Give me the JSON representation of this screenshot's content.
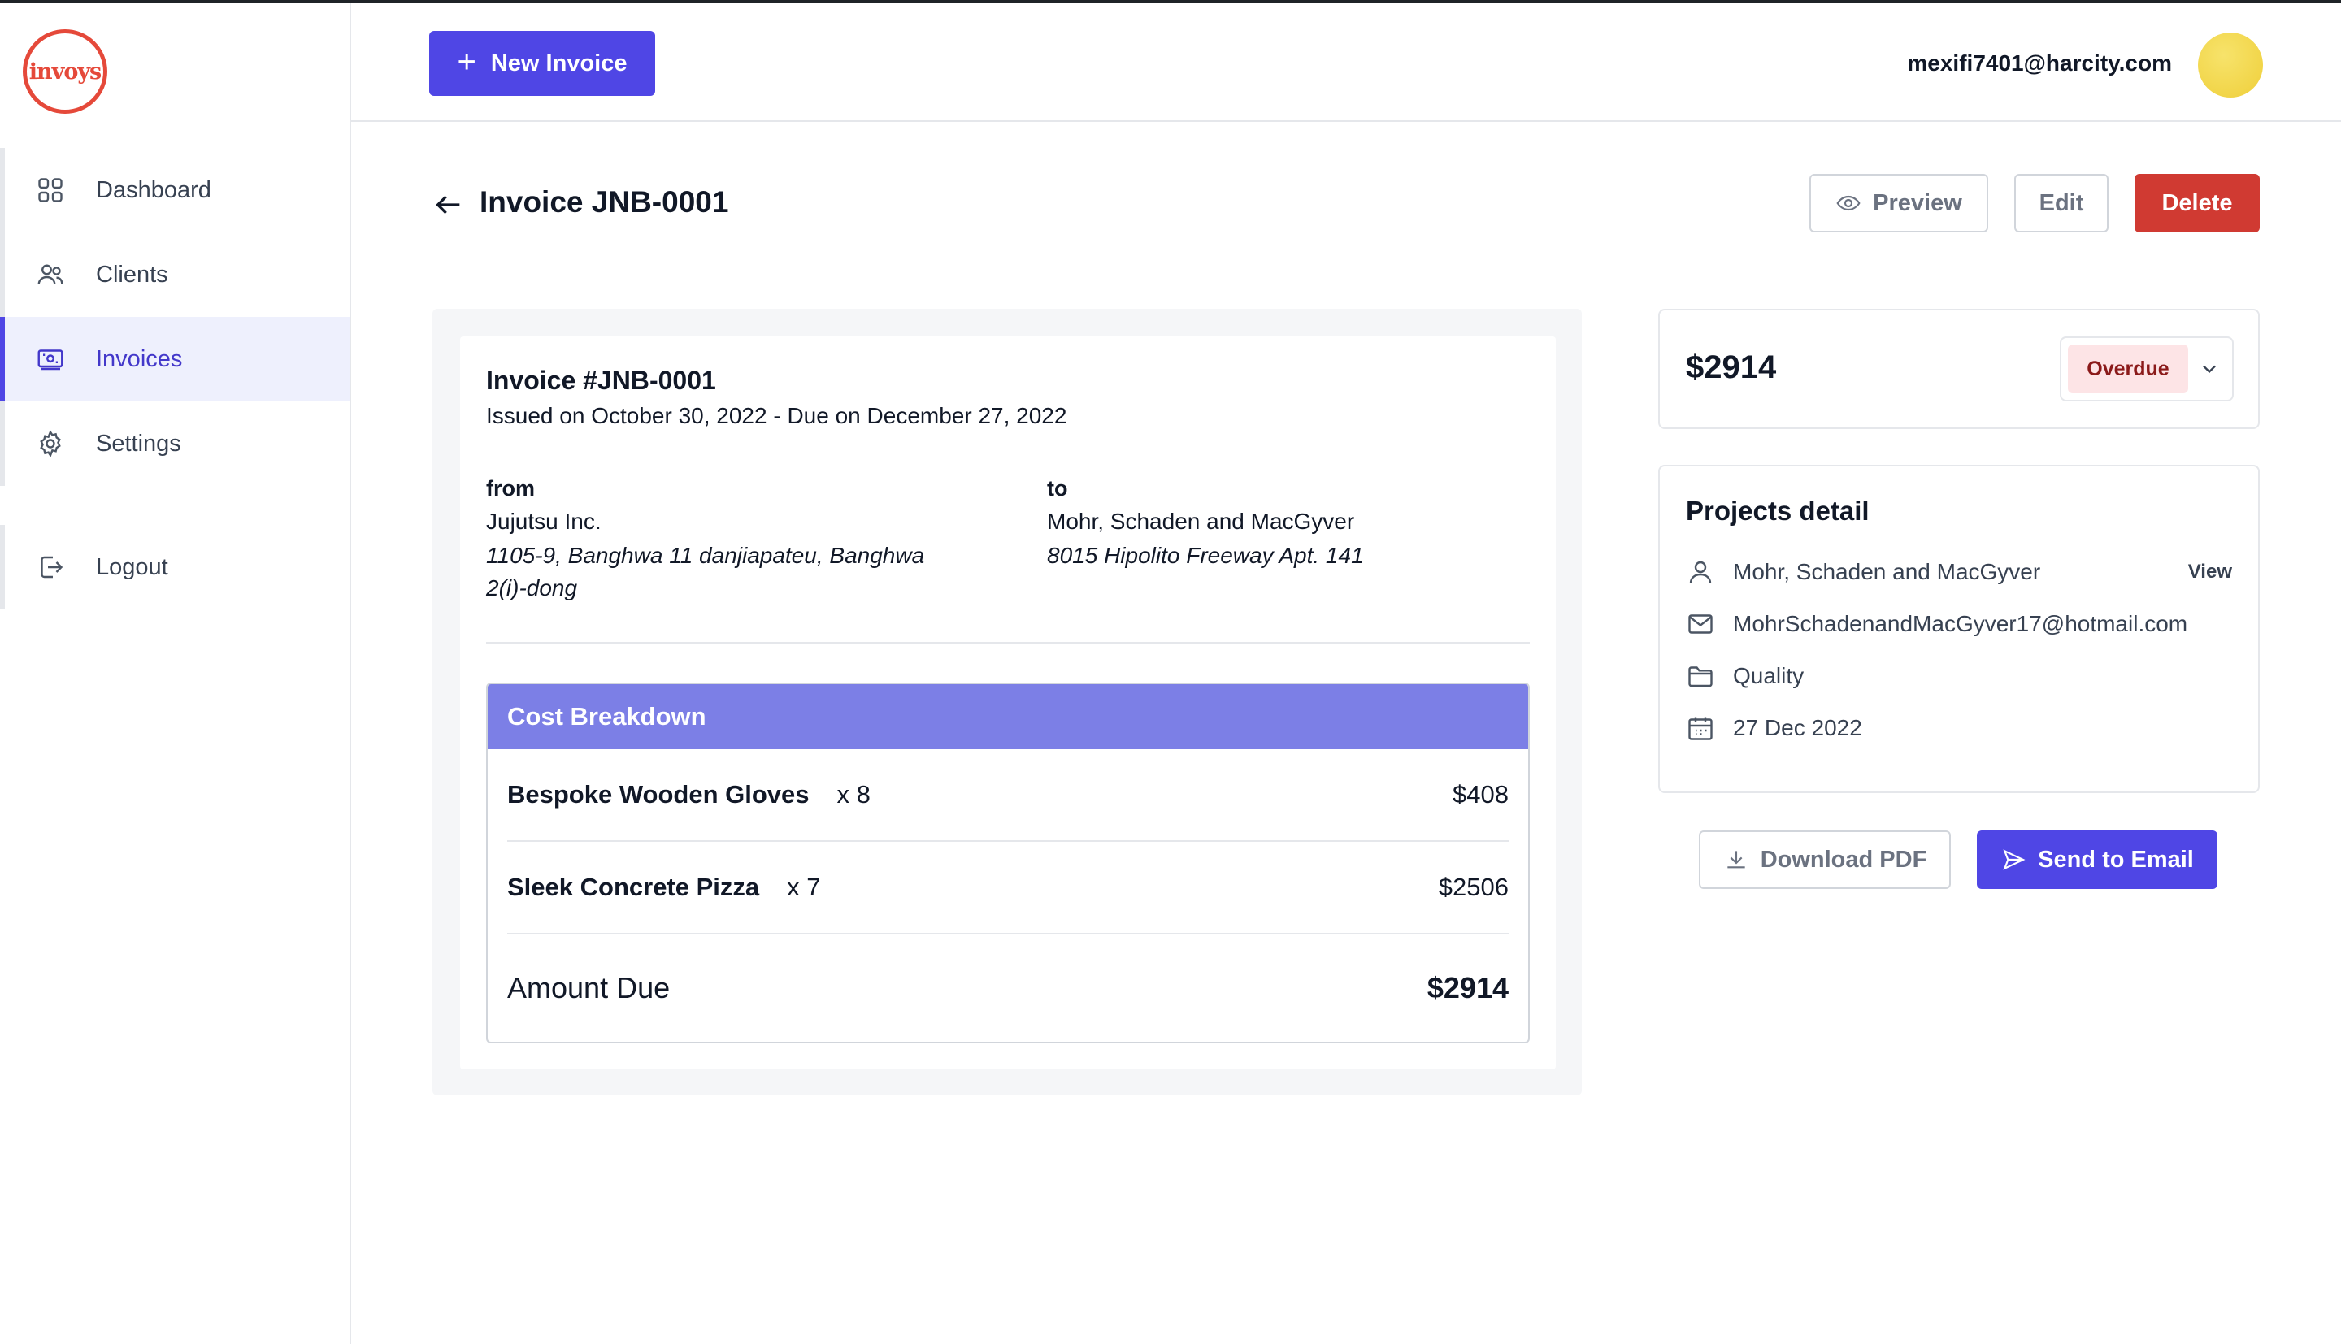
{
  "app": {
    "logo_text": "invoys",
    "brand_color": "#e5493a",
    "accent_color": "#4f46e5"
  },
  "sidebar": {
    "items": [
      {
        "label": "Dashboard",
        "icon": "grid-icon",
        "active": false
      },
      {
        "label": "Clients",
        "icon": "users-icon",
        "active": false
      },
      {
        "label": "Invoices",
        "icon": "invoice-icon",
        "active": true
      },
      {
        "label": "Settings",
        "icon": "gear-icon",
        "active": false
      }
    ],
    "logout_label": "Logout"
  },
  "header": {
    "new_invoice_label": "New Invoice",
    "user_email": "mexifi7401@harcity.com"
  },
  "page": {
    "title": "Invoice JNB-0001",
    "actions": {
      "preview": "Preview",
      "edit": "Edit",
      "delete": "Delete"
    }
  },
  "invoice": {
    "number_label": "Invoice #JNB-0001",
    "dates": "Issued on October 30, 2022 - Due on December 27, 2022",
    "from": {
      "label": "from",
      "name": "Jujutsu Inc.",
      "address_line1": "1105-9, Banghwa 11 danjiapateu, Banghwa",
      "address_line2": "2(i)-dong"
    },
    "to": {
      "label": "to",
      "name": "Mohr, Schaden and MacGyver",
      "address": "8015 Hipolito Freeway Apt. 141"
    },
    "breakdown": {
      "title": "Cost Breakdown",
      "items": [
        {
          "name": "Bespoke Wooden Gloves",
          "qty": "x 8",
          "price": "$408"
        },
        {
          "name": "Sleek Concrete Pizza",
          "qty": "x 7",
          "price": "$2506"
        }
      ],
      "amount_due_label": "Amount Due",
      "amount_due_value": "$2914"
    }
  },
  "summary": {
    "total": "$2914",
    "status": "Overdue",
    "status_color": "#8b1a1a"
  },
  "project": {
    "title": "Projects detail",
    "client": "Mohr, Schaden and MacGyver",
    "view_label": "View",
    "email": "MohrSchadenandMacGyver17@hotmail.com",
    "category": "Quality",
    "date": "27 Dec 2022"
  },
  "footer_actions": {
    "download": "Download PDF",
    "send": "Send to Email"
  }
}
